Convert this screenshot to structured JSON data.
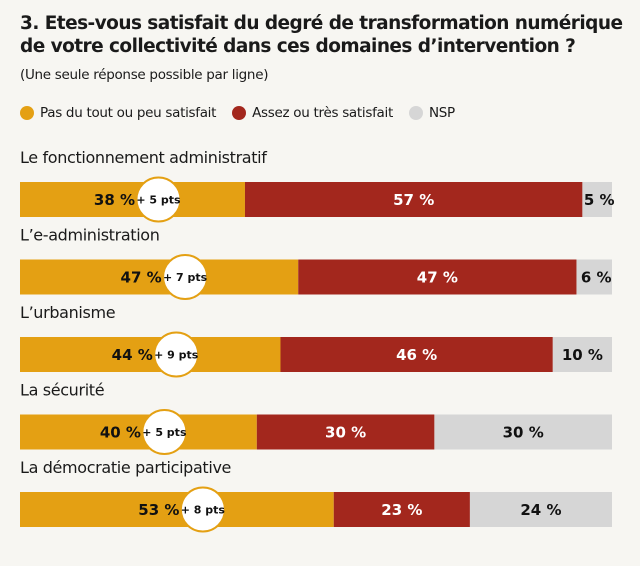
{
  "header": {
    "title_line1": "3. Etes-vous satisfait du degré de transformation numérique",
    "title_line2": "de votre collectivité dans ces domaines d’intervention ?",
    "subtitle": "(Une seule réponse possible par ligne)"
  },
  "legend": [
    {
      "label": "Pas du tout ou peu satisfait",
      "color": "#e4a013"
    },
    {
      "label": "Assez ou très satisfait",
      "color": "#a3271d"
    },
    {
      "label": "NSP",
      "color": "#d6d6d6"
    }
  ],
  "chart_data": {
    "type": "bar",
    "orientation": "horizontal-stacked-100",
    "categories": [
      "Le fonctionnement administratif",
      "L’e-administration",
      "L’urbanisme",
      "La sécurité",
      "La démocratie participative"
    ],
    "series": [
      {
        "name": "Pas du tout ou peu satisfait",
        "color": "#e4a013",
        "values": [
          38,
          47,
          44,
          40,
          53
        ],
        "labels": [
          "38 %",
          "47 %",
          "44 %",
          "40 %",
          "53 %"
        ]
      },
      {
        "name": "Assez ou très satisfait",
        "color": "#a3271d",
        "values": [
          57,
          47,
          46,
          30,
          23
        ],
        "labels": [
          "57 %",
          "47 %",
          "46 %",
          "30 %",
          "23 %"
        ]
      },
      {
        "name": "NSP",
        "color": "#d6d6d6",
        "values": [
          5,
          6,
          10,
          30,
          24
        ],
        "labels": [
          "5 %",
          "6 %",
          "10 %",
          "30 %",
          "24 %"
        ]
      }
    ],
    "annotations": [
      "+ 5 pts",
      "+ 7 pts",
      "+ 9 pts",
      "+ 5 pts",
      "+ 8 pts"
    ],
    "xlim": [
      0,
      100
    ]
  }
}
